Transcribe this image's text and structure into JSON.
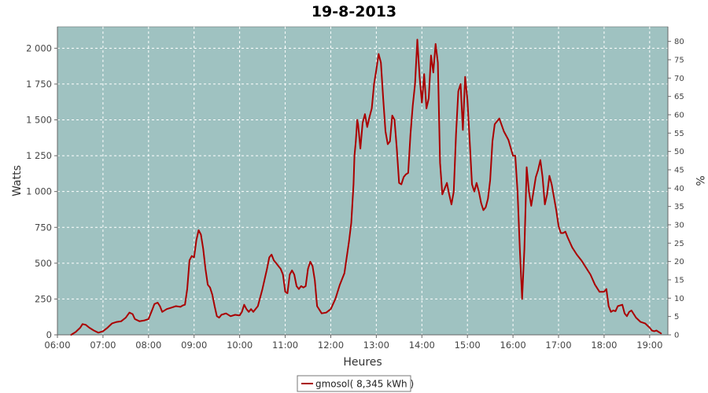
{
  "chart_data": {
    "type": "line",
    "title": "19-8-2013",
    "xlabel": "Heures",
    "ylabel": "Watts",
    "y2label": "%",
    "xlim": [
      6.0,
      19.4
    ],
    "ylim": [
      0,
      2150
    ],
    "y2lim": [
      0,
      84
    ],
    "x_ticks": [
      6,
      7,
      8,
      9,
      10,
      11,
      12,
      13,
      14,
      15,
      16,
      17,
      18,
      19
    ],
    "x_tick_labels": [
      "06:00",
      "07:00",
      "08:00",
      "09:00",
      "10:00",
      "11:00",
      "12:00",
      "13:00",
      "14:00",
      "15:00",
      "16:00",
      "17:00",
      "18:00",
      "19:00"
    ],
    "y_ticks": [
      0,
      250,
      500,
      750,
      1000,
      1250,
      1500,
      1750,
      2000
    ],
    "y_tick_labels": [
      "0",
      "250",
      "500",
      "750",
      "1 000",
      "1 250",
      "1 500",
      "1 750",
      "2 000"
    ],
    "y2_ticks": [
      0,
      5,
      10,
      15,
      20,
      25,
      30,
      35,
      40,
      45,
      50,
      55,
      60,
      65,
      70,
      75,
      80
    ],
    "grid": true,
    "plot_background": "#9fc2c1",
    "line_color": "#aa0000",
    "legend": {
      "position": "bottom",
      "entries": [
        "gmosol( 8,345 kWh )"
      ]
    },
    "series": [
      {
        "name": "gmosol( 8,345 kWh )",
        "color": "#aa0000",
        "x": [
          6.3,
          6.4,
          6.5,
          6.55,
          6.62,
          6.7,
          6.8,
          6.9,
          7.0,
          7.1,
          7.2,
          7.3,
          7.4,
          7.5,
          7.58,
          7.65,
          7.7,
          7.8,
          7.9,
          8.0,
          8.08,
          8.13,
          8.2,
          8.25,
          8.3,
          8.4,
          8.5,
          8.6,
          8.7,
          8.75,
          8.8,
          8.85,
          8.9,
          8.95,
          9.0,
          9.05,
          9.1,
          9.15,
          9.2,
          9.25,
          9.3,
          9.35,
          9.4,
          9.45,
          9.5,
          9.55,
          9.6,
          9.7,
          9.8,
          9.9,
          10.0,
          10.05,
          10.1,
          10.15,
          10.2,
          10.25,
          10.3,
          10.4,
          10.5,
          10.55,
          10.6,
          10.65,
          10.7,
          10.75,
          10.8,
          10.85,
          10.9,
          10.95,
          11.0,
          11.05,
          11.1,
          11.15,
          11.2,
          11.25,
          11.3,
          11.35,
          11.4,
          11.45,
          11.5,
          11.55,
          11.6,
          11.65,
          11.7,
          11.8,
          11.9,
          12.0,
          12.1,
          12.2,
          12.3,
          12.4,
          12.45,
          12.5,
          12.52,
          12.55,
          12.58,
          12.6,
          12.65,
          12.7,
          12.75,
          12.8,
          12.85,
          12.9,
          12.95,
          13.0,
          13.05,
          13.1,
          13.15,
          13.2,
          13.25,
          13.3,
          13.35,
          13.4,
          13.45,
          13.5,
          13.55,
          13.6,
          13.65,
          13.7,
          13.75,
          13.8,
          13.85,
          13.9,
          13.95,
          14.0,
          14.05,
          14.1,
          14.15,
          14.2,
          14.25,
          14.3,
          14.35,
          14.4,
          14.45,
          14.5,
          14.55,
          14.6,
          14.65,
          14.7,
          14.75,
          14.8,
          14.85,
          14.9,
          14.95,
          15.0,
          15.05,
          15.1,
          15.15,
          15.2,
          15.25,
          15.3,
          15.35,
          15.4,
          15.45,
          15.5,
          15.55,
          15.6,
          15.7,
          15.8,
          15.9,
          16.0,
          16.05,
          16.1,
          16.15,
          16.2,
          16.25,
          16.3,
          16.35,
          16.4,
          16.45,
          16.5,
          16.55,
          16.6,
          16.65,
          16.7,
          16.75,
          16.8,
          16.85,
          16.9,
          16.95,
          17.0,
          17.05,
          17.1,
          17.15,
          17.2,
          17.3,
          17.4,
          17.5,
          17.6,
          17.7,
          17.8,
          17.9,
          18.0,
          18.05,
          18.1,
          18.15,
          18.2,
          18.25,
          18.3,
          18.4,
          18.45,
          18.5,
          18.55,
          18.6,
          18.7,
          18.8,
          18.9,
          19.0,
          19.05,
          19.1,
          19.15,
          19.2,
          19.25
        ],
        "values": [
          0,
          20,
          50,
          75,
          70,
          50,
          30,
          15,
          25,
          50,
          80,
          90,
          95,
          120,
          155,
          145,
          110,
          95,
          100,
          110,
          175,
          215,
          225,
          200,
          160,
          180,
          190,
          200,
          195,
          205,
          210,
          320,
          520,
          550,
          540,
          660,
          730,
          700,
          600,
          460,
          350,
          330,
          280,
          200,
          130,
          120,
          140,
          150,
          130,
          140,
          135,
          160,
          210,
          180,
          160,
          180,
          160,
          200,
          320,
          390,
          460,
          540,
          560,
          520,
          500,
          480,
          460,
          420,
          300,
          290,
          420,
          450,
          420,
          340,
          320,
          340,
          330,
          340,
          460,
          510,
          480,
          380,
          200,
          150,
          155,
          180,
          250,
          350,
          430,
          650,
          780,
          1050,
          1250,
          1350,
          1500,
          1470,
          1300,
          1480,
          1540,
          1450,
          1520,
          1580,
          1750,
          1850,
          1960,
          1900,
          1650,
          1420,
          1330,
          1350,
          1530,
          1500,
          1300,
          1060,
          1050,
          1100,
          1120,
          1130,
          1400,
          1600,
          1750,
          2060,
          1800,
          1620,
          1820,
          1580,
          1650,
          1950,
          1830,
          2030,
          1900,
          1200,
          980,
          1020,
          1060,
          980,
          910,
          1000,
          1400,
          1700,
          1750,
          1430,
          1800,
          1640,
          1350,
          1050,
          1000,
          1060,
          1000,
          920,
          870,
          890,
          950,
          1080,
          1350,
          1470,
          1510,
          1420,
          1360,
          1250,
          1250,
          1000,
          600,
          250,
          600,
          1170,
          1000,
          900,
          1000,
          1100,
          1150,
          1220,
          1100,
          910,
          980,
          1110,
          1050,
          960,
          870,
          760,
          710,
          710,
          720,
          680,
          610,
          560,
          520,
          470,
          420,
          350,
          300,
          300,
          320,
          200,
          160,
          170,
          165,
          200,
          210,
          150,
          130,
          160,
          170,
          120,
          90,
          80,
          50,
          30,
          25,
          30,
          20,
          10
        ]
      }
    ]
  }
}
